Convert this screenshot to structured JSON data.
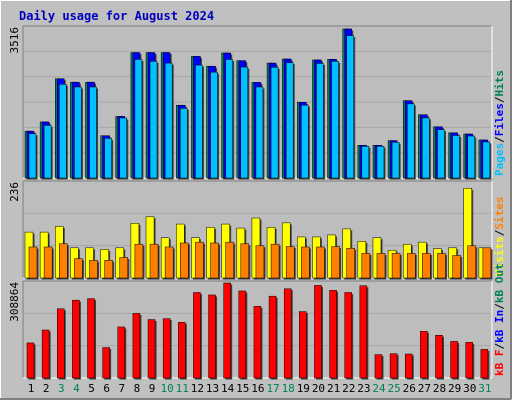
{
  "chart_data": {
    "title": "Daily usage for August 2024",
    "days": [
      "1",
      "2",
      "3",
      "4",
      "5",
      "6",
      "7",
      "8",
      "9",
      "10",
      "11",
      "12",
      "13",
      "14",
      "15",
      "16",
      "17",
      "18",
      "19",
      "20",
      "21",
      "22",
      "23",
      "24",
      "25",
      "26",
      "27",
      "28",
      "29",
      "30",
      "31"
    ],
    "weekend_days": [
      3,
      4,
      10,
      11,
      17,
      18,
      24,
      25,
      31
    ],
    "colors": {
      "background": "#c0c0c0",
      "panel": "#bdbdbd",
      "title": "#0000c0",
      "hits": "#00805c",
      "files": "#0000ff",
      "pages": "#00c0ff",
      "visits": "#ffff00",
      "sites": "#ff8000",
      "kb_in": "#0000ff",
      "kb_out": "#00805c",
      "kb_f": "#ff0000",
      "weekday_label": "#000000",
      "weekend_label": "#00805c"
    },
    "top_panel": {
      "max_label": "3516",
      "ymax": 3516,
      "legend": [
        {
          "text": "Pages",
          "color": "#00c0ff"
        },
        {
          "text": "Files",
          "color": "#0000ff"
        },
        {
          "text": "Hits",
          "color": "#00805c"
        }
      ],
      "hits": [
        1098,
        1314,
        2327,
        2246,
        2246,
        991,
        1444,
        2940,
        2940,
        2940,
        1706,
        2851,
        2620,
        2930,
        2750,
        2240,
        2693,
        2789,
        1775,
        2766,
        2782,
        3493,
        767,
        767,
        876,
        1813,
        1483,
        1200,
        1060,
        1031,
        891
      ],
      "files": [
        1098,
        1314,
        2327,
        2246,
        2246,
        991,
        1444,
        2940,
        2940,
        2940,
        1706,
        2851,
        2620,
        2930,
        2750,
        2240,
        2693,
        2789,
        1775,
        2766,
        2782,
        3493,
        767,
        767,
        876,
        1813,
        1483,
        1200,
        1060,
        1031,
        891
      ],
      "pages": [
        1037,
        1232,
        2197,
        2133,
        2133,
        930,
        1407,
        2779,
        2734,
        2693,
        1632,
        2647,
        2480,
        2778,
        2600,
        2133,
        2596,
        2703,
        1708,
        2686,
        2733,
        3338,
        743,
        743,
        838,
        1737,
        1408,
        1133,
        997,
        983,
        844
      ]
    },
    "middle_panel": {
      "max_label": "236",
      "ymax": 236,
      "legend": [
        {
          "text": "Visits",
          "color": "#ffff00"
        },
        {
          "text": "Sites",
          "color": "#ff8000"
        }
      ],
      "visits": [
        114,
        114,
        128,
        75,
        75,
        71,
        75,
        136,
        152,
        100,
        134,
        100,
        126,
        134,
        124,
        149,
        126,
        137,
        102,
        102,
        107,
        122,
        91,
        100,
        69,
        84,
        89,
        73,
        75,
        223,
        75
      ],
      "sites": [
        77,
        77,
        85,
        48,
        44,
        44,
        51,
        84,
        84,
        77,
        87,
        89,
        87,
        89,
        85,
        80,
        84,
        78,
        77,
        77,
        78,
        74,
        61,
        61,
        61,
        61,
        61,
        61,
        56,
        80,
        75
      ]
    },
    "bottom_panel": {
      "max_label": "308864",
      "ymax": 308864,
      "legend": [
        {
          "text": "kB F",
          "color": "#ff0000"
        },
        {
          "text": "kB In",
          "color": "#0000ff"
        },
        {
          "text": "kB Out",
          "color": "#00805c"
        }
      ],
      "kb_f": [
        114000,
        156000,
        225000,
        253000,
        258000,
        99000,
        166000,
        210000,
        190000,
        193000,
        181000,
        278000,
        270000,
        308864,
        283000,
        233000,
        266000,
        290000,
        216000,
        301000,
        285000,
        278000,
        300000,
        76000,
        79000,
        78000,
        152000,
        139000,
        119000,
        116000,
        93000
      ]
    }
  }
}
